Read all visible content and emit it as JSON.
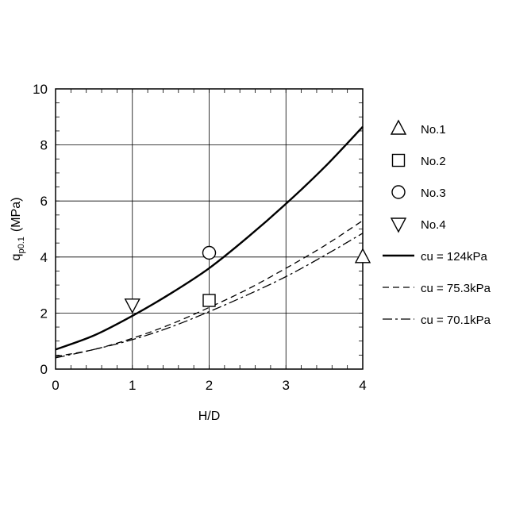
{
  "chart_data": {
    "type": "line",
    "xlabel": "H/D",
    "ylabel": {
      "main": "q",
      "sub": "p0.1",
      "unit": "(MPa)"
    },
    "xlim": [
      0,
      4
    ],
    "ylim": [
      0,
      10
    ],
    "x_ticks": [
      "0",
      "1",
      "2",
      "3",
      "4"
    ],
    "y_ticks": [
      "0",
      "2",
      "4",
      "6",
      "8",
      "10"
    ],
    "grid": true,
    "legend_position": "right",
    "points": [
      {
        "name": "No.1",
        "marker": "triangle-up",
        "x": 4,
        "y": 4.0
      },
      {
        "name": "No.2",
        "marker": "square",
        "x": 2,
        "y": 2.45
      },
      {
        "name": "No.3",
        "marker": "circle",
        "x": 2,
        "y": 4.15
      },
      {
        "name": "No.4",
        "marker": "triangle-down",
        "x": 1,
        "y": 2.3
      }
    ],
    "series": [
      {
        "name": "cu = 124kPa",
        "style": "solid",
        "x": [
          0,
          0.5,
          1,
          1.5,
          2,
          2.5,
          3,
          3.5,
          4
        ],
        "y": [
          0.7,
          1.2,
          1.9,
          2.7,
          3.6,
          4.7,
          5.9,
          7.2,
          8.65
        ]
      },
      {
        "name": "cu = 75.3kPa",
        "style": "dashed",
        "x": [
          0,
          0.5,
          1,
          1.5,
          2,
          2.5,
          3,
          3.5,
          4
        ],
        "y": [
          0.45,
          0.7,
          1.1,
          1.6,
          2.2,
          2.85,
          3.6,
          4.4,
          5.3
        ]
      },
      {
        "name": "cu = 70.1kPa",
        "style": "dashdot",
        "x": [
          0,
          0.5,
          1,
          1.5,
          2,
          2.5,
          3,
          3.5,
          4
        ],
        "y": [
          0.4,
          0.7,
          1.05,
          1.5,
          2.05,
          2.65,
          3.3,
          4.05,
          4.85
        ]
      }
    ]
  }
}
